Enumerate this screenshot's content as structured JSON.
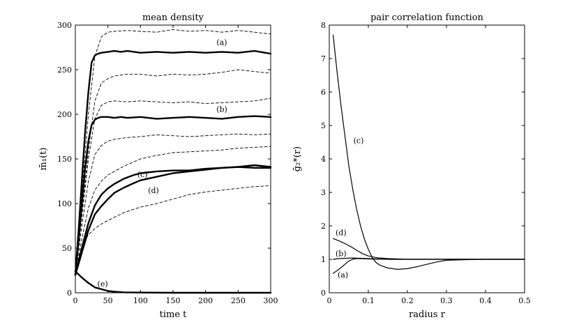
{
  "chart_data": [
    {
      "type": "line",
      "title": "mean density",
      "xlabel": "time t",
      "ylabel": "m̄₁(t)",
      "xlim": [
        0,
        300
      ],
      "ylim": [
        0,
        300
      ],
      "xticks": [
        0,
        50,
        100,
        150,
        200,
        250,
        300
      ],
      "yticks": [
        0,
        50,
        100,
        150,
        200,
        250,
        300
      ],
      "series": [
        {
          "name": "(a) upper band",
          "style": "dashed",
          "x": [
            0,
            10,
            20,
            30,
            40,
            50,
            60,
            80,
            100,
            125,
            150,
            175,
            200,
            225,
            250,
            275,
            300
          ],
          "y": [
            20,
            110,
            200,
            265,
            287,
            292,
            293,
            294,
            293,
            292,
            295,
            293,
            294,
            292,
            294,
            292,
            290
          ]
        },
        {
          "name": "(a)",
          "label": "(a)",
          "style": "solid",
          "x": [
            0,
            5,
            10,
            15,
            20,
            25,
            30,
            35,
            40,
            50,
            60,
            70,
            80,
            100,
            125,
            150,
            175,
            200,
            225,
            250,
            275,
            300
          ],
          "y": [
            20,
            70,
            125,
            180,
            225,
            258,
            266,
            268,
            269,
            270,
            271,
            270,
            271,
            269,
            270,
            269,
            270,
            269,
            270,
            269,
            271,
            268
          ]
        },
        {
          "name": "(a) lower band",
          "style": "dashed",
          "x": [
            0,
            10,
            20,
            30,
            40,
            50,
            60,
            80,
            100,
            125,
            150,
            175,
            200,
            225,
            250,
            275,
            300
          ],
          "y": [
            20,
            90,
            160,
            215,
            235,
            240,
            243,
            245,
            245,
            243,
            245,
            244,
            245,
            247,
            250,
            248,
            246
          ]
        },
        {
          "name": "(b) upper band",
          "style": "dashed",
          "x": [
            0,
            10,
            20,
            30,
            40,
            50,
            60,
            80,
            100,
            125,
            150,
            175,
            200,
            225,
            250,
            275,
            300
          ],
          "y": [
            20,
            85,
            150,
            195,
            210,
            214,
            215,
            214,
            215,
            214,
            213,
            214,
            212,
            213,
            214,
            215,
            218
          ]
        },
        {
          "name": "(b)",
          "label": "(b)",
          "style": "solid",
          "x": [
            0,
            5,
            10,
            15,
            20,
            25,
            30,
            35,
            40,
            50,
            60,
            70,
            80,
            100,
            125,
            150,
            175,
            200,
            225,
            250,
            275,
            300
          ],
          "y": [
            20,
            60,
            100,
            140,
            170,
            188,
            194,
            196,
            197,
            197,
            196,
            197,
            196,
            197,
            195,
            196,
            197,
            196,
            195,
            197,
            198,
            197
          ]
        },
        {
          "name": "(b) lower band",
          "style": "dashed",
          "x": [
            0,
            10,
            20,
            30,
            40,
            50,
            60,
            80,
            100,
            125,
            150,
            175,
            200,
            225,
            250,
            275,
            300
          ],
          "y": [
            20,
            75,
            125,
            155,
            165,
            170,
            172,
            174,
            175,
            177,
            176,
            175,
            176,
            177,
            178,
            177,
            178
          ]
        },
        {
          "name": "(c) band",
          "style": "dashed",
          "x": [
            0,
            10,
            20,
            30,
            40,
            50,
            75,
            100,
            125,
            150,
            175,
            200,
            225,
            250,
            275,
            300
          ],
          "y": [
            20,
            60,
            95,
            115,
            125,
            132,
            142,
            150,
            154,
            157,
            158,
            159,
            160,
            162,
            163,
            164
          ]
        },
        {
          "name": "(c)",
          "label": "(c)",
          "style": "solid",
          "x": [
            0,
            10,
            20,
            30,
            40,
            50,
            60,
            75,
            90,
            100,
            125,
            150,
            175,
            200,
            225,
            250,
            275,
            300
          ],
          "y": [
            20,
            50,
            78,
            98,
            110,
            117,
            122,
            128,
            132,
            134,
            136,
            137,
            137,
            139,
            140,
            141,
            140,
            140
          ]
        },
        {
          "name": "(d)",
          "label": "(d)",
          "style": "solid",
          "x": [
            0,
            10,
            20,
            30,
            40,
            50,
            60,
            75,
            90,
            100,
            125,
            150,
            175,
            200,
            225,
            250,
            275,
            300
          ],
          "y": [
            20,
            45,
            70,
            88,
            97,
            105,
            112,
            118,
            123,
            126,
            130,
            134,
            136,
            138,
            140,
            141,
            143,
            141
          ]
        },
        {
          "name": "(d) band",
          "style": "dashed",
          "x": [
            0,
            10,
            20,
            30,
            40,
            50,
            75,
            100,
            125,
            150,
            175,
            200,
            225,
            250,
            275,
            300
          ],
          "y": [
            20,
            52,
            65,
            72,
            77,
            81,
            90,
            96,
            100,
            105,
            110,
            113,
            115,
            117,
            119,
            120
          ]
        },
        {
          "name": "(e)",
          "label": "(e)",
          "style": "solid",
          "x": [
            0,
            10,
            20,
            30,
            40,
            50,
            60,
            75,
            100,
            150,
            200,
            250,
            300
          ],
          "y": [
            24,
            17,
            11,
            6,
            4,
            2,
            1.2,
            0.5,
            0.2,
            0,
            0,
            0,
            0
          ]
        }
      ],
      "annotations": [
        {
          "text": "(a)",
          "x": 225,
          "y": 281
        },
        {
          "text": "(b)",
          "x": 225,
          "y": 206
        },
        {
          "text": "(c)",
          "x": 103,
          "y": 133
        },
        {
          "text": "(d)",
          "x": 120,
          "y": 115
        },
        {
          "text": "(e)",
          "x": 42,
          "y": 10
        }
      ]
    },
    {
      "type": "line",
      "title": "pair correlation function",
      "xlabel": "radius r",
      "ylabel": "ḡ₂*(r)",
      "xlim": [
        0,
        0.5
      ],
      "ylim": [
        0,
        8
      ],
      "xticks": [
        0,
        0.1,
        0.2,
        0.3,
        0.4,
        0.5
      ],
      "yticks": [
        0,
        1,
        2,
        3,
        4,
        5,
        6,
        7,
        8
      ],
      "series": [
        {
          "name": "(c)",
          "label": "(c)",
          "x": [
            0.01,
            0.02,
            0.03,
            0.04,
            0.05,
            0.06,
            0.07,
            0.08,
            0.09,
            0.1,
            0.11,
            0.12,
            0.13,
            0.15,
            0.175,
            0.2,
            0.225,
            0.25,
            0.275,
            0.3,
            0.35,
            0.4,
            0.5
          ],
          "y": [
            7.7,
            6.6,
            5.6,
            4.7,
            3.8,
            3.1,
            2.5,
            2.0,
            1.6,
            1.3,
            1.05,
            0.9,
            0.82,
            0.74,
            0.7,
            0.72,
            0.78,
            0.85,
            0.92,
            0.97,
            0.99,
            1.0,
            1.0
          ]
        },
        {
          "name": "(d)",
          "label": "(d)",
          "x": [
            0.01,
            0.025,
            0.04,
            0.055,
            0.07,
            0.085,
            0.1,
            0.12,
            0.15,
            0.2,
            0.3,
            0.4,
            0.5
          ],
          "y": [
            1.62,
            1.55,
            1.47,
            1.38,
            1.27,
            1.17,
            1.1,
            1.05,
            1.02,
            1.0,
            1.0,
            1.0,
            1.0
          ]
        },
        {
          "name": "(b)",
          "label": "(b)",
          "x": [
            0.01,
            0.025,
            0.04,
            0.06,
            0.08,
            0.1,
            0.15,
            0.2,
            0.3,
            0.4,
            0.5
          ],
          "y": [
            1.0,
            1.02,
            1.03,
            1.04,
            1.03,
            1.02,
            1.0,
            1.0,
            1.0,
            1.0,
            1.0
          ]
        },
        {
          "name": "(a)",
          "label": "(a)",
          "x": [
            0.01,
            0.02,
            0.03,
            0.04,
            0.05,
            0.06,
            0.07,
            0.08,
            0.1,
            0.15,
            0.2,
            0.3,
            0.4,
            0.5
          ],
          "y": [
            0.58,
            0.66,
            0.75,
            0.85,
            0.95,
            1.0,
            1.02,
            1.02,
            1.01,
            1.0,
            1.0,
            1.0,
            1.0,
            1.0
          ]
        }
      ],
      "annotations": [
        {
          "text": "(c)",
          "x": 0.075,
          "y": 4.55
        },
        {
          "text": "(d)",
          "x": 0.03,
          "y": 1.8
        },
        {
          "text": "(b)",
          "x": 0.03,
          "y": 1.18
        },
        {
          "text": "(a)",
          "x": 0.035,
          "y": 0.54
        }
      ]
    }
  ]
}
